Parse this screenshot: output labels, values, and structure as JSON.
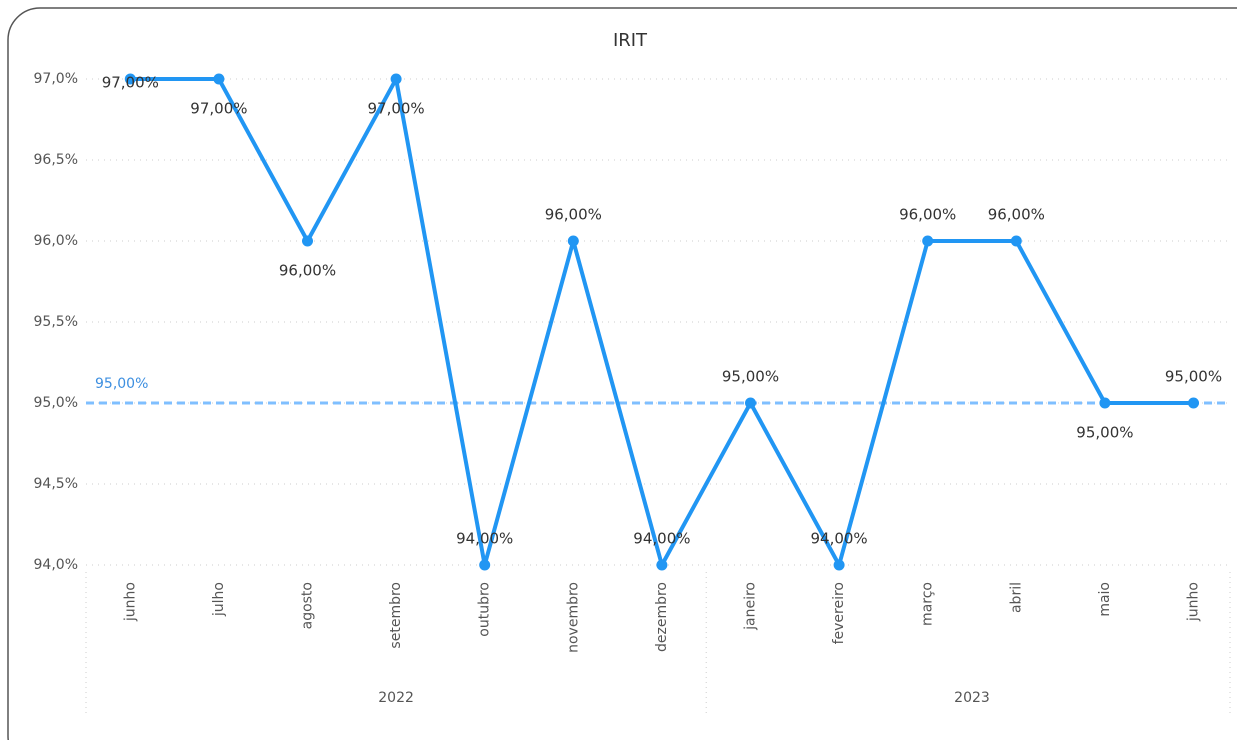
{
  "chart_data": {
    "type": "line",
    "title": "IRIT",
    "categories": [
      "junho",
      "julho",
      "agosto",
      "setembro",
      "outubro",
      "novembro",
      "dezembro",
      "janeiro",
      "fevereiro",
      "março",
      "abril",
      "maio",
      "junho"
    ],
    "category_years": [
      "2022",
      "2022",
      "2022",
      "2022",
      "2022",
      "2022",
      "2022",
      "2023",
      "2023",
      "2023",
      "2023",
      "2023",
      "2023"
    ],
    "series": [
      {
        "name": "IRIT",
        "color": "#2196f3",
        "values": [
          97,
          97,
          96,
          97,
          94,
          96,
          94,
          95,
          94,
          96,
          96,
          95,
          95
        ],
        "value_labels": [
          "97,00%",
          "97,00%",
          "96,00%",
          "97,00%",
          "94,00%",
          "96,00%",
          "94,00%",
          "95,00%",
          "94,00%",
          "96,00%",
          "96,00%",
          "95,00%",
          "95,00%"
        ]
      }
    ],
    "ylim": [
      94,
      97
    ],
    "yticks": [
      {
        "value": 94,
        "label": "94,0%"
      },
      {
        "value": 94.5,
        "label": "94,5%"
      },
      {
        "value": 95,
        "label": "95,0%"
      },
      {
        "value": 95.5,
        "label": "95,5%"
      },
      {
        "value": 96,
        "label": "96,0%"
      },
      {
        "value": 96.5,
        "label": "96,5%"
      },
      {
        "value": 97,
        "label": "97,0%"
      }
    ],
    "grid": true,
    "reference_line": {
      "value": 95,
      "label": "95,00%",
      "color": "#7fbfff"
    }
  }
}
